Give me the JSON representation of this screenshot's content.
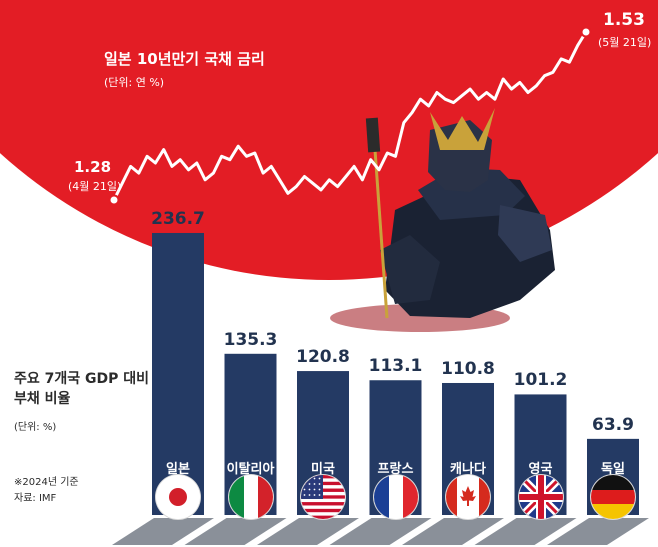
{
  "line_chart": {
    "title": "일본 10년만기 국채 금리",
    "unit": "(단위: 연 %)",
    "start_value": "1.28",
    "start_date": "(4월 21일)",
    "end_value": "1.53",
    "end_date": "(5월 21일)"
  },
  "bar_chart": {
    "title_line1": "주요 7개국 GDP 대비",
    "title_line2": "부채 비율",
    "unit": "(단위: %)",
    "note": "※2024년 기준",
    "source": "자료: IMF"
  },
  "colors": {
    "sun_red": "#e31d25",
    "bar_navy": "#243a64",
    "base_gray": "#8a9099"
  },
  "chart_data": [
    {
      "type": "line",
      "title": "일본 10년만기 국채 금리",
      "ylabel": "연 %",
      "x_start": "4월 21일",
      "x_end": "5월 21일",
      "values": [
        1.28,
        1.305,
        1.33,
        1.32,
        1.345,
        1.335,
        1.355,
        1.33,
        1.34,
        1.325,
        1.335,
        1.31,
        1.32,
        1.345,
        1.34,
        1.36,
        1.345,
        1.35,
        1.32,
        1.33,
        1.31,
        1.29,
        1.3,
        1.315,
        1.305,
        1.295,
        1.31,
        1.3,
        1.315,
        1.33,
        1.31,
        1.34,
        1.325,
        1.35,
        1.345,
        1.395,
        1.41,
        1.43,
        1.42,
        1.44,
        1.43,
        1.425,
        1.435,
        1.445,
        1.43,
        1.44,
        1.43,
        1.46,
        1.445,
        1.455,
        1.44,
        1.45,
        1.465,
        1.47,
        1.49,
        1.485,
        1.51,
        1.53
      ]
    },
    {
      "type": "bar",
      "title": "주요 7개국 GDP 대비 부채 비율",
      "ylabel": "%",
      "categories": [
        "일본",
        "이탈리아",
        "미국",
        "프랑스",
        "캐나다",
        "영국",
        "독일"
      ],
      "values": [
        236.7,
        135.3,
        120.8,
        113.1,
        110.8,
        101.2,
        63.9
      ],
      "value_labels": [
        "236.7",
        "135.3",
        "120.8",
        "113.1",
        "110.8",
        "101.2",
        "63.9"
      ],
      "flags": [
        "japan-flag",
        "italy-flag",
        "usa-flag",
        "france-flag",
        "canada-flag",
        "uk-flag",
        "germany-flag"
      ]
    }
  ]
}
